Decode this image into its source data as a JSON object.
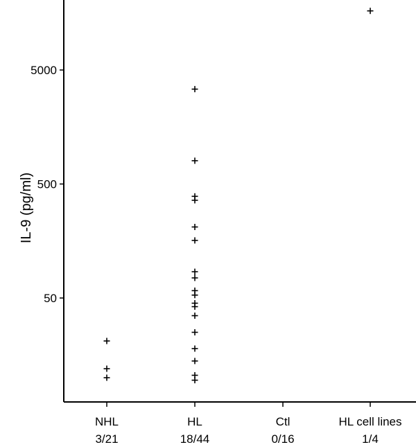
{
  "chart_data": {
    "type": "scatter",
    "title": "",
    "xlabel": "",
    "ylabel": "IL-9 (pg/ml)",
    "yscale": "log",
    "ylim": [
      8,
      30000
    ],
    "yticks": [
      {
        "value": 50,
        "label": "50"
      },
      {
        "value": 500,
        "label": "500"
      },
      {
        "value": 5000,
        "label": "5000"
      }
    ],
    "grid": false,
    "legend": "none",
    "marker": "+",
    "categories": [
      {
        "name": "NHL",
        "ratio": "3/21",
        "values": [
          21,
          12,
          10
        ]
      },
      {
        "name": "HL",
        "ratio": "18/44",
        "values": [
          3400,
          800,
          390,
          360,
          210,
          160,
          85,
          75,
          58,
          53,
          45,
          42,
          35,
          25,
          18,
          14,
          10.5,
          9.5
        ]
      },
      {
        "name": "Ctl",
        "ratio": "0/16",
        "values": []
      },
      {
        "name": "HL cell lines",
        "ratio": "1/4",
        "values": [
          16500
        ]
      }
    ]
  }
}
